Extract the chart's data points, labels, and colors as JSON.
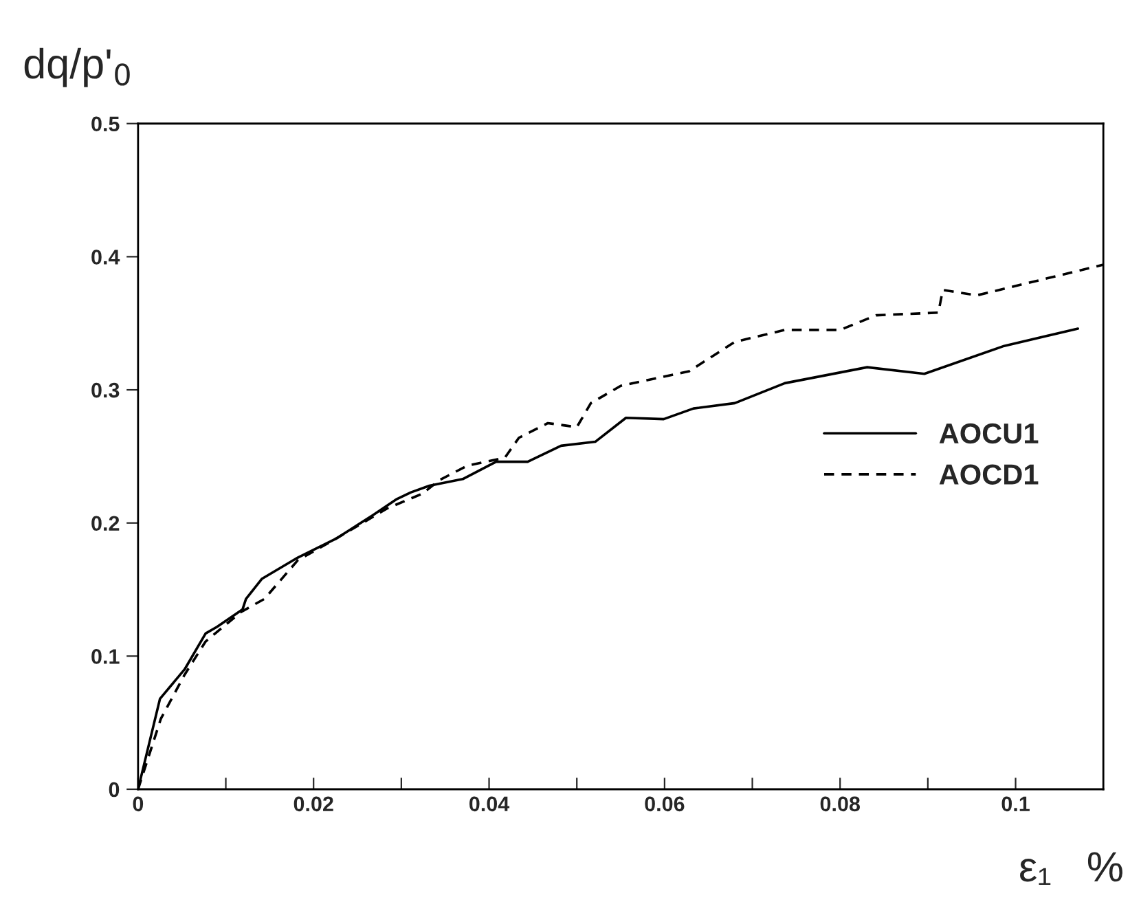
{
  "chart_data": {
    "type": "line",
    "xlabel": "ε₁   %",
    "ylabel": "dq/p'$_{0}$",
    "xlim": [
      0,
      0.11
    ],
    "ylim": [
      0,
      0.5
    ],
    "xticks": [
      0,
      {
        "value": 0.01,
        "label": null
      },
      0.02,
      {
        "value": 0.03,
        "label": null
      },
      0.04,
      {
        "value": 0.05,
        "label": null
      },
      0.06,
      {
        "value": 0.07,
        "label": null
      },
      0.08,
      {
        "value": 0.09,
        "label": null
      },
      0.1
    ],
    "yticks": [
      0,
      0.1,
      0.2,
      0.3,
      0.4,
      0.5
    ],
    "grid": false,
    "legend": "right",
    "marker": "none",
    "series": [
      {
        "name": "AOCU1",
        "color": "#000000",
        "line_style": "solid",
        "x": [
          0,
          0.0025,
          0.0053,
          0.0077,
          0.009,
          0.0119,
          0.0123,
          0.0141,
          0.0182,
          0.0225,
          0.0268,
          0.0295,
          0.0311,
          0.0332,
          0.037,
          0.0408,
          0.0444,
          0.0482,
          0.0521,
          0.0556,
          0.0599,
          0.0633,
          0.068,
          0.0737,
          0.0831,
          0.0896,
          0.0987,
          0.1071
        ],
        "values": [
          0,
          0.068,
          0.09,
          0.117,
          0.122,
          0.135,
          0.143,
          0.158,
          0.174,
          0.188,
          0.206,
          0.218,
          0.223,
          0.228,
          0.233,
          0.246,
          0.246,
          0.258,
          0.261,
          0.279,
          0.278,
          0.286,
          0.29,
          0.305,
          0.317,
          0.312,
          0.333,
          0.346
        ]
      },
      {
        "name": "AOCD1",
        "color": "#000000",
        "line_style": "dashed",
        "x": [
          0,
          0.0026,
          0.0053,
          0.0077,
          0.0117,
          0.0144,
          0.0182,
          0.0225,
          0.0284,
          0.0324,
          0.0343,
          0.0375,
          0.0418,
          0.0434,
          0.0467,
          0.05,
          0.0516,
          0.055,
          0.0628,
          0.068,
          0.0737,
          0.08,
          0.0841,
          0.0912,
          0.0917,
          0.0956,
          0.105,
          0.11
        ],
        "values": [
          0,
          0.053,
          0.086,
          0.111,
          0.133,
          0.143,
          0.172,
          0.188,
          0.211,
          0.222,
          0.232,
          0.243,
          0.249,
          0.264,
          0.275,
          0.272,
          0.29,
          0.303,
          0.314,
          0.336,
          0.345,
          0.345,
          0.356,
          0.358,
          0.375,
          0.371,
          0.386,
          0.394
        ]
      }
    ]
  }
}
